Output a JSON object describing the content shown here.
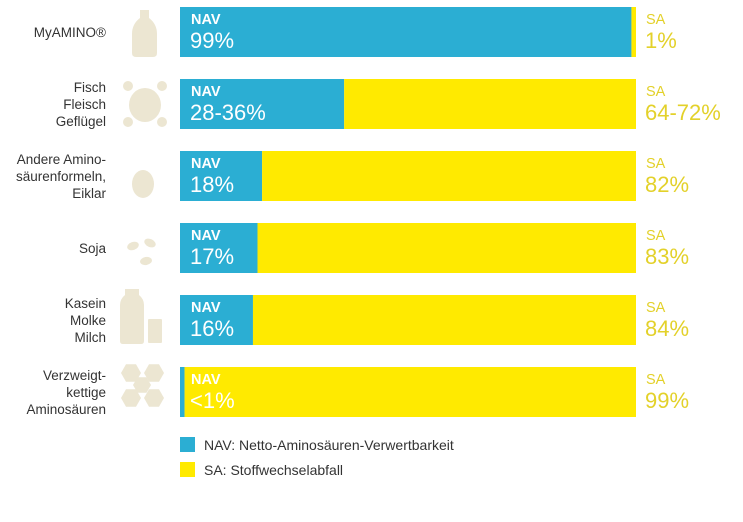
{
  "colors": {
    "nav": "#2BAED3",
    "sa": "#FFEA00",
    "sa_text": "#E3D12A",
    "icon": "#ECE6D2",
    "label": "#333333"
  },
  "chart_data": {
    "type": "bar",
    "orientation": "horizontal",
    "stacked": true,
    "xlim": [
      0,
      100
    ],
    "categories": [
      {
        "lines": [
          "MyAMINO®"
        ],
        "icon": "bottle-icon"
      },
      {
        "lines": [
          "Fisch",
          "Fleisch",
          "Geflügel"
        ],
        "icon": "chicken-icon"
      },
      {
        "lines": [
          "Andere Amino-",
          "säurenformeln,",
          "Eiklar"
        ],
        "icon": "egg-icon"
      },
      {
        "lines": [
          "Soja"
        ],
        "icon": "beans-icon"
      },
      {
        "lines": [
          "Kasein",
          "Molke",
          "Milch"
        ],
        "icon": "milk-icon"
      },
      {
        "lines": [
          "Verzweigt-",
          "kettige",
          "Aminosäuren"
        ],
        "icon": "hexagons-icon"
      }
    ],
    "series": [
      {
        "name": "NAV",
        "values": [
          99,
          36,
          18,
          17,
          16,
          1
        ],
        "labels": [
          "99%",
          "28-36%",
          "18%",
          "17%",
          "16%",
          "<1%"
        ]
      },
      {
        "name": "SA",
        "values": [
          1,
          64,
          82,
          83,
          84,
          99
        ],
        "labels": [
          "1%",
          "64-72%",
          "82%",
          "83%",
          "84%",
          "99%"
        ]
      }
    ],
    "legend": [
      {
        "series": "NAV",
        "text": "NAV: Netto-Aminosäuren-Verwertbarkeit"
      },
      {
        "series": "SA",
        "text": "SA: Stoffwechselabfall"
      }
    ],
    "legend_position": "bottom-center"
  }
}
